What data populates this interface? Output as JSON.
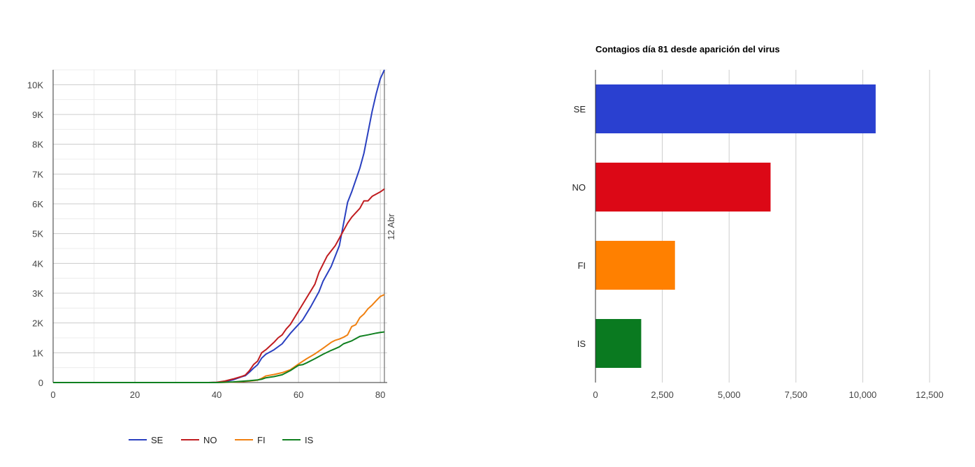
{
  "chart_data": [
    {
      "type": "line",
      "title": "",
      "xlabel": "",
      "ylabel": "",
      "xlim": [
        0,
        81
      ],
      "ylim": [
        0,
        10500
      ],
      "x_ticks": [
        0,
        20,
        40,
        60,
        80
      ],
      "y_ticks": [
        0,
        1000,
        2000,
        3000,
        4000,
        5000,
        6000,
        7000,
        8000,
        9000,
        10000
      ],
      "y_tick_labels": [
        "0",
        "1K",
        "2K",
        "3K",
        "4K",
        "5K",
        "6K",
        "7K",
        "8K",
        "9K",
        "10K"
      ],
      "grid": true,
      "legend": "bottom",
      "annotation": {
        "x": 81,
        "text": "12 Abr"
      },
      "series": [
        {
          "name": "SE",
          "color": "#2a40c0",
          "points": [
            [
              0,
              0
            ],
            [
              38,
              0
            ],
            [
              40,
              5
            ],
            [
              42,
              30
            ],
            [
              44,
              90
            ],
            [
              46,
              190
            ],
            [
              47,
              230
            ],
            [
              48,
              350
            ],
            [
              49,
              480
            ],
            [
              50,
              600
            ],
            [
              51,
              820
            ],
            [
              52,
              950
            ],
            [
              54,
              1100
            ],
            [
              56,
              1300
            ],
            [
              58,
              1650
            ],
            [
              60,
              1950
            ],
            [
              61,
              2100
            ],
            [
              63,
              2550
            ],
            [
              65,
              3050
            ],
            [
              66,
              3400
            ],
            [
              68,
              3900
            ],
            [
              70,
              4600
            ],
            [
              72,
              6050
            ],
            [
              73,
              6400
            ],
            [
              75,
              7200
            ],
            [
              76,
              7700
            ],
            [
              78,
              9100
            ],
            [
              79,
              9700
            ],
            [
              80,
              10200
            ],
            [
              81,
              10500
            ]
          ]
        },
        {
          "name": "NO",
          "color": "#c01c20",
          "points": [
            [
              0,
              0
            ],
            [
              38,
              0
            ],
            [
              40,
              10
            ],
            [
              42,
              50
            ],
            [
              44,
              120
            ],
            [
              46,
              200
            ],
            [
              47,
              250
            ],
            [
              48,
              400
            ],
            [
              49,
              600
            ],
            [
              50,
              720
            ],
            [
              51,
              1000
            ],
            [
              52,
              1100
            ],
            [
              54,
              1350
            ],
            [
              55,
              1500
            ],
            [
              56,
              1600
            ],
            [
              57,
              1800
            ],
            [
              58,
              1950
            ],
            [
              60,
              2400
            ],
            [
              62,
              2850
            ],
            [
              64,
              3300
            ],
            [
              65,
              3700
            ],
            [
              67,
              4250
            ],
            [
              69,
              4600
            ],
            [
              70,
              4850
            ],
            [
              72,
              5350
            ],
            [
              73,
              5550
            ],
            [
              74,
              5700
            ],
            [
              75,
              5850
            ],
            [
              76,
              6100
            ],
            [
              77,
              6100
            ],
            [
              78,
              6250
            ],
            [
              80,
              6400
            ],
            [
              81,
              6500
            ]
          ]
        },
        {
          "name": "FI",
          "color": "#f08010",
          "points": [
            [
              0,
              0
            ],
            [
              40,
              0
            ],
            [
              44,
              15
            ],
            [
              46,
              30
            ],
            [
              48,
              50
            ],
            [
              50,
              80
            ],
            [
              51,
              140
            ],
            [
              52,
              220
            ],
            [
              54,
              270
            ],
            [
              56,
              330
            ],
            [
              58,
              430
            ],
            [
              60,
              620
            ],
            [
              62,
              800
            ],
            [
              64,
              960
            ],
            [
              66,
              1150
            ],
            [
              68,
              1350
            ],
            [
              69,
              1420
            ],
            [
              70,
              1460
            ],
            [
              71,
              1520
            ],
            [
              72,
              1600
            ],
            [
              73,
              1880
            ],
            [
              74,
              1940
            ],
            [
              75,
              2180
            ],
            [
              76,
              2300
            ],
            [
              77,
              2480
            ],
            [
              78,
              2600
            ],
            [
              79,
              2750
            ],
            [
              80,
              2890
            ],
            [
              81,
              2950
            ]
          ]
        },
        {
          "name": "IS",
          "color": "#108020",
          "points": [
            [
              0,
              0
            ],
            [
              40,
              0
            ],
            [
              44,
              20
            ],
            [
              46,
              40
            ],
            [
              48,
              60
            ],
            [
              50,
              90
            ],
            [
              51,
              110
            ],
            [
              52,
              160
            ],
            [
              54,
              200
            ],
            [
              56,
              260
            ],
            [
              58,
              400
            ],
            [
              60,
              580
            ],
            [
              61,
              600
            ],
            [
              62,
              660
            ],
            [
              64,
              800
            ],
            [
              66,
              950
            ],
            [
              68,
              1080
            ],
            [
              69,
              1140
            ],
            [
              70,
              1200
            ],
            [
              71,
              1300
            ],
            [
              73,
              1400
            ],
            [
              75,
              1550
            ],
            [
              77,
              1600
            ],
            [
              79,
              1660
            ],
            [
              80,
              1680
            ],
            [
              81,
              1700
            ]
          ]
        }
      ]
    },
    {
      "type": "bar",
      "orientation": "horizontal",
      "title": "Contagios día 81 desde aparición del virus",
      "xlabel": "",
      "ylabel": "",
      "xlim": [
        0,
        12500
      ],
      "x_ticks": [
        0,
        2500,
        5000,
        7500,
        10000,
        12500
      ],
      "x_tick_labels": [
        "0",
        "2,500",
        "5,000",
        "7,500",
        "10,000",
        "12,500"
      ],
      "grid": true,
      "categories": [
        "SE",
        "NO",
        "FI",
        "IS"
      ],
      "values": [
        10483,
        6551,
        2974,
        1711
      ],
      "colors": [
        "#2a40d0",
        "#dc0816",
        "#ff8000",
        "#0a7a20"
      ]
    }
  ]
}
